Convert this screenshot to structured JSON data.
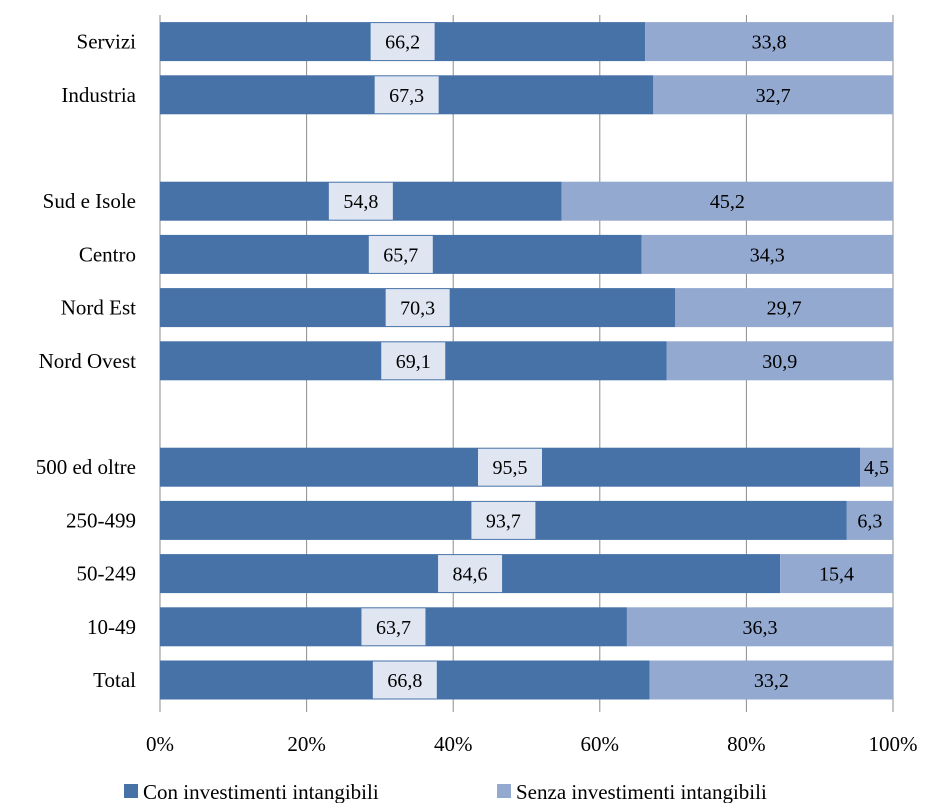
{
  "chart_data": {
    "type": "bar",
    "orientation": "horizontal",
    "stacked": "percent",
    "title": "",
    "xlabel": "",
    "ylabel": "",
    "xlim": [
      0,
      100
    ],
    "x_ticks": [
      "0%",
      "20%",
      "40%",
      "60%",
      "80%",
      "100%"
    ],
    "grid": "vertical",
    "legend_position": "bottom",
    "categories": [
      "Servizi",
      "Industria",
      "",
      "Sud e Isole",
      "Centro",
      "Nord Est",
      "Nord Ovest",
      "",
      "500 ed oltre",
      "250-499",
      "50-249",
      "10-49",
      "Total"
    ],
    "series": [
      {
        "name": "Con investimenti intangibili",
        "color": "#4672a8",
        "values": [
          66.2,
          67.3,
          null,
          54.8,
          65.7,
          70.3,
          69.1,
          null,
          95.5,
          93.7,
          84.6,
          63.7,
          66.8
        ],
        "labels": [
          "66,2",
          "67,3",
          "",
          "54,8",
          "65,7",
          "70,3",
          "69,1",
          "",
          "95,5",
          "93,7",
          "84,6",
          "63,7",
          "66,8"
        ]
      },
      {
        "name": "Senza investimenti intangibili",
        "color": "#93a9d0",
        "values": [
          33.8,
          32.7,
          null,
          45.2,
          34.3,
          29.7,
          30.9,
          null,
          4.5,
          6.3,
          15.4,
          36.3,
          33.2
        ],
        "labels": [
          "33,8",
          "32,7",
          "",
          "45,2",
          "34,3",
          "29,7",
          "30,9",
          "",
          "4,5",
          "6,3",
          "15,4",
          "36,3",
          "33,2"
        ]
      }
    ],
    "label_box_color": "#dfe6f2",
    "grid_color": "#8c8c8c"
  }
}
